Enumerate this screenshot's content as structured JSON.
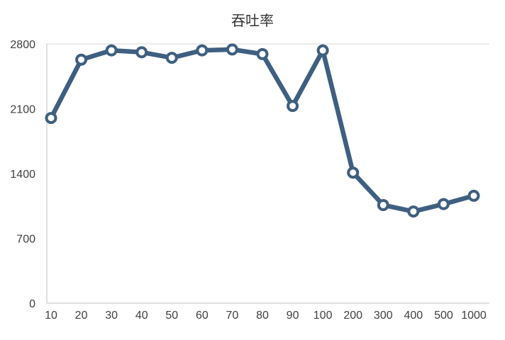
{
  "chart_data": {
    "type": "line",
    "title": "吞吐率",
    "categories": [
      "10",
      "20",
      "30",
      "40",
      "50",
      "60",
      "70",
      "80",
      "90",
      "100",
      "200",
      "300",
      "400",
      "500",
      "1000"
    ],
    "values": [
      2000,
      2630,
      2730,
      2710,
      2650,
      2730,
      2740,
      2690,
      2130,
      2730,
      1410,
      1060,
      990,
      1070,
      1160
    ],
    "xlabel": "",
    "ylabel": "",
    "ylim": [
      0,
      2800
    ],
    "yticks": [
      0,
      700,
      1400,
      2100,
      2800
    ],
    "grid": false,
    "legend": "none",
    "line_color": "#3e5f80",
    "marker_fill": "#ffffff",
    "axis_color": "#bfbfbf",
    "top_border_color": "#d9d9d9",
    "label_color": "#404040"
  }
}
